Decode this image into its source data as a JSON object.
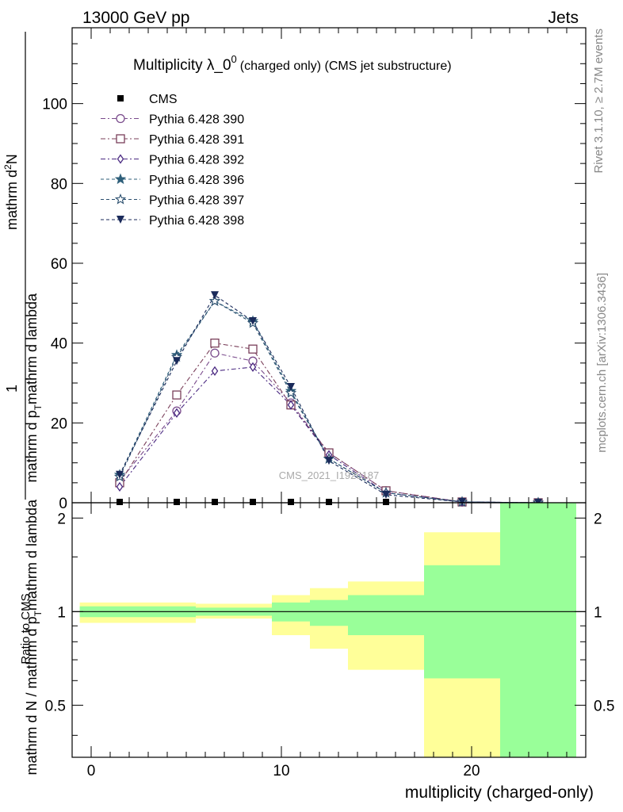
{
  "header": {
    "left": "13000 GeV pp",
    "right": "Jets"
  },
  "side_labels": {
    "rivet": "Rivet 3.1.10, ≥ 2.7M events",
    "mcplots": "mcplots.cern.ch [arXiv:1306.3436]"
  },
  "watermark": "CMS_2021_I1920187",
  "chart_data": {
    "type": "line",
    "title_main": "Multiplicity λ_0",
    "title_sup": "0",
    "title_suffix": "(charged only) (CMS jet substructure)",
    "ylabel_top": "1",
    "ylabel_bottom": "mathrm d N / mathrm d p",
    "ylabel_bottom_sub": "T",
    "ylabel_bottom_tail": "mathrm d lambda",
    "ylabel_num": "mathrm d",
    "ylabel_num_sup": "2",
    "ylabel_num_tail": "N",
    "ylabel_den": "mathrm d p",
    "ylabel_den_sub": "T",
    "ylabel_den_tail": "mathrm d lambda",
    "ratio_ylabel": "Ratio to CMS",
    "xlabel": "multiplicity (charged-only)",
    "xlim": [
      -1,
      26
    ],
    "ylim": [
      0,
      119
    ],
    "ratio_ylim": [
      0.34,
      2.24
    ],
    "x_ticks": [
      0,
      10,
      20
    ],
    "y_ticks": [
      20,
      40,
      60,
      80,
      100
    ],
    "ratio_ticks": [
      0.5,
      1,
      2
    ],
    "ratio_tick_labels": [
      "0.5",
      "1",
      "2"
    ],
    "x": [
      1.5,
      4.5,
      6.5,
      8.5,
      10.5,
      12.5,
      15.5,
      19.5,
      23.5
    ],
    "series": [
      {
        "name": "CMS",
        "marker": "square",
        "color": "#000000",
        "values": [
          0.2,
          0.2,
          0.2,
          0.2,
          0.2,
          0.2,
          0.2,
          0.2,
          0.1
        ]
      },
      {
        "name": "Pythia 6.428 390",
        "marker": "circle",
        "color": "#7a4b8c",
        "dash": "6,3,2,3",
        "values": [
          5.5,
          23.0,
          37.5,
          35.5,
          25.0,
          12.5,
          3.0,
          0.2,
          0.0
        ]
      },
      {
        "name": "Pythia 6.428 391",
        "marker": "square-open",
        "color": "#7a3f5a",
        "dash": "6,3,2,3",
        "values": [
          5.0,
          27.0,
          40.0,
          38.5,
          24.5,
          12.5,
          3.0,
          0.2,
          0.0
        ]
      },
      {
        "name": "Pythia 6.428 392",
        "marker": "diamond",
        "color": "#4b2a82",
        "dash": "6,3,2,3",
        "values": [
          4.0,
          22.5,
          33.0,
          34.0,
          24.5,
          12.0,
          2.5,
          0.2,
          0.0
        ]
      },
      {
        "name": "Pythia 6.428 396",
        "marker": "star",
        "color": "#2e5f7a",
        "dash": "4,3",
        "values": [
          7.0,
          37.0,
          50.5,
          45.5,
          28.0,
          11.0,
          2.5,
          0.2,
          0.0
        ]
      },
      {
        "name": "Pythia 6.428 397",
        "marker": "star-open",
        "color": "#2a4e6e",
        "dash": "4,3",
        "values": [
          6.5,
          36.5,
          50.5,
          45.0,
          27.5,
          11.0,
          2.5,
          0.2,
          0.0
        ]
      },
      {
        "name": "Pythia 6.428 398",
        "marker": "triangle-down",
        "color": "#1a2a5a",
        "dash": "4,3",
        "values": [
          7.0,
          35.5,
          52.0,
          45.5,
          29.0,
          10.5,
          2.0,
          0.2,
          0.0
        ]
      }
    ],
    "ratio_bands": [
      {
        "x0": -0.6,
        "x1": 5.5,
        "inner": [
          0.96,
          1.04
        ],
        "outer": [
          0.92,
          1.07
        ]
      },
      {
        "x0": 5.5,
        "x1": 9.5,
        "inner": [
          0.97,
          1.03
        ],
        "outer": [
          0.95,
          1.06
        ]
      },
      {
        "x0": 9.5,
        "x1": 11.5,
        "inner": [
          0.93,
          1.07
        ],
        "outer": [
          0.84,
          1.13
        ]
      },
      {
        "x0": 11.5,
        "x1": 13.5,
        "inner": [
          0.9,
          1.09
        ],
        "outer": [
          0.76,
          1.19
        ]
      },
      {
        "x0": 13.5,
        "x1": 17.5,
        "inner": [
          0.84,
          1.13
        ],
        "outer": [
          0.65,
          1.25
        ]
      },
      {
        "x0": 17.5,
        "x1": 21.5,
        "inner": [
          0.61,
          1.41
        ],
        "outer": [
          0.34,
          1.8
        ]
      },
      {
        "x0": 21.5,
        "x1": 25.5,
        "inner": [
          0.34,
          2.24
        ],
        "outer": [
          0.34,
          2.24
        ]
      }
    ],
    "colors": {
      "inner_band": "#99ff99",
      "outer_band": "#ffff99"
    },
    "legend_position": "top-left"
  }
}
